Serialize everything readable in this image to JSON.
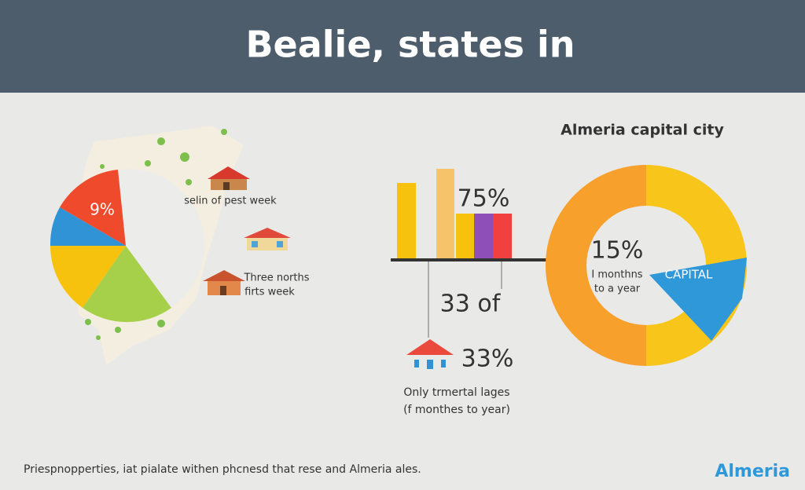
{
  "header": {
    "title": "Bealie, states in"
  },
  "map_panel": {
    "pie_label": "9%",
    "note_1": "selin of pest week",
    "note_2_line_1": "Three norths",
    "note_2_line_2": "firts week"
  },
  "bar_panel": {
    "bar_label": "75%",
    "count_label": "33 of",
    "icon_label": "33%",
    "caption_line_1": "Only trmertal lages",
    "caption_line_2": "(f monthes to year)"
  },
  "donut_panel": {
    "title": "Almeria capital city",
    "center_value": "15%",
    "center_line_1": "I monthns",
    "center_line_2": "to a year",
    "wedge_label": "CAPITAL"
  },
  "footer": {
    "text": "Priespnopperties, iat pialate withen phcnesd that rese and Almeria ales.",
    "logo": "Almeria"
  }
}
